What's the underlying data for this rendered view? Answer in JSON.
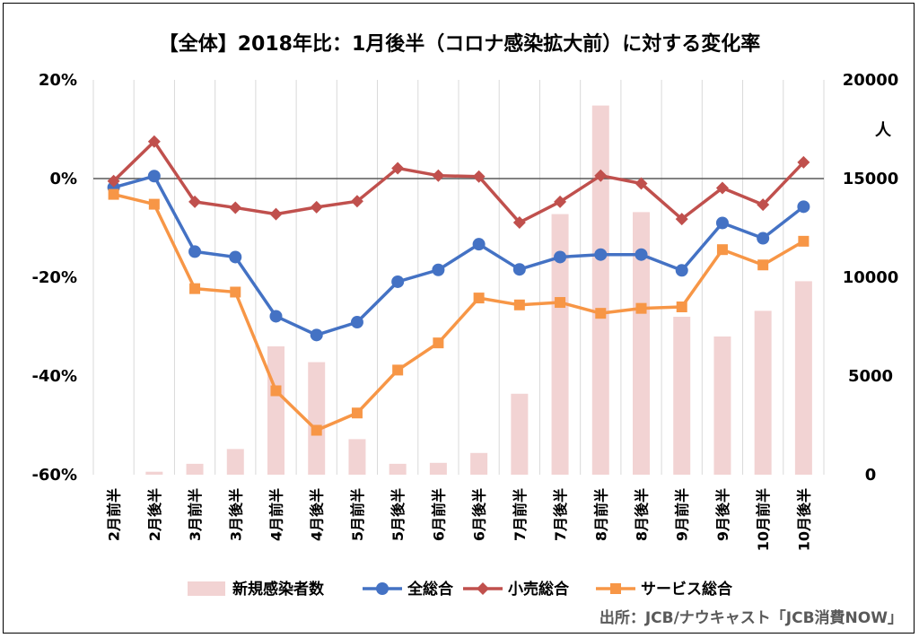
{
  "chart_data": {
    "type": "line",
    "title": "【全体】2018年比：1月後半（コロナ感染拡大前）に対する変化率",
    "categories": [
      "2月前半",
      "2月後半",
      "3月前半",
      "3月後半",
      "4月前半",
      "4月後半",
      "5月前半",
      "5月後半",
      "6月前半",
      "6月後半",
      "7月前半",
      "7月後半",
      "8月前半",
      "8月後半",
      "9月前半",
      "9月後半",
      "10月前半",
      "10月後半"
    ],
    "left_axis": {
      "ylim": [
        -60,
        20
      ],
      "ticks": [
        "20%",
        "0%",
        "-20%",
        "-40%",
        "-60%"
      ],
      "tick_values": [
        20,
        0,
        -20,
        -40,
        -60
      ]
    },
    "right_axis": {
      "ylim": [
        0,
        20000
      ],
      "unit": "人",
      "ticks": [
        "20000",
        "15000",
        "10000",
        "5000",
        "0"
      ],
      "tick_values": [
        20000,
        15000,
        10000,
        5000,
        0
      ]
    },
    "grid": "vertical",
    "legend_position": "bottom",
    "series": [
      {
        "name": "新規感染者数",
        "kind": "bar",
        "axis": "right",
        "color": "#F2D3D3",
        "values": [
          0,
          150,
          550,
          1300,
          6500,
          5700,
          1800,
          550,
          600,
          1100,
          4100,
          13200,
          18700,
          13300,
          8000,
          7000,
          8300,
          9800
        ]
      },
      {
        "name": "全総合",
        "kind": "line",
        "axis": "left",
        "color": "#4472C4",
        "marker": "circle",
        "values": [
          -1.8,
          0.5,
          -14.8,
          -15.9,
          -27.9,
          -31.7,
          -29.1,
          -20.9,
          -18.5,
          -13.3,
          -18.4,
          -15.9,
          -15.4,
          -15.4,
          -18.6,
          -9.0,
          -12.1,
          -5.7
        ]
      },
      {
        "name": "小売総合",
        "kind": "line",
        "axis": "left",
        "color": "#C0504D",
        "marker": "diamond",
        "values": [
          -0.5,
          7.5,
          -4.7,
          -5.9,
          -7.2,
          -5.8,
          -4.6,
          2.1,
          0.6,
          0.4,
          -8.9,
          -4.7,
          0.6,
          -1.0,
          -8.2,
          -1.9,
          -5.3,
          3.3
        ]
      },
      {
        "name": "サービス総合",
        "kind": "line",
        "axis": "left",
        "color": "#F79646",
        "marker": "square",
        "values": [
          -3.2,
          -5.2,
          -22.3,
          -23.0,
          -43.0,
          -51.0,
          -47.5,
          -38.8,
          -33.3,
          -24.2,
          -25.6,
          -25.1,
          -27.3,
          -26.3,
          -26.0,
          -14.4,
          -17.5,
          -12.7
        ]
      }
    ]
  },
  "source": "出所：JCB/ナウキャスト「JCB消費NOW」"
}
